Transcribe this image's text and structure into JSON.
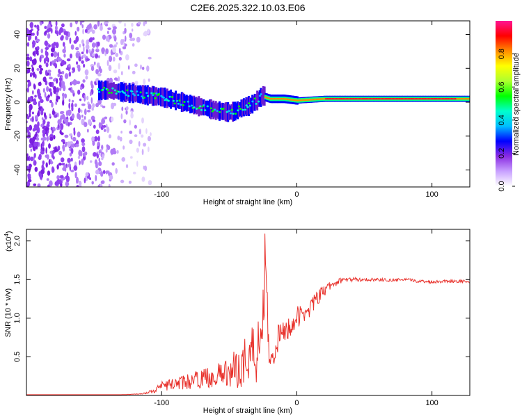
{
  "title": "C2E6.2025.322.10.03.E06",
  "chart_data": [
    {
      "type": "heatmap",
      "xlabel": "Height of straight line (km)",
      "ylabel": "Frequency (Hz)",
      "xlim": [
        -200,
        128
      ],
      "ylim": [
        -50,
        48
      ],
      "xticks": [
        -100,
        0,
        100
      ],
      "yticks": [
        -40,
        -20,
        0,
        20,
        40
      ],
      "colorbar": {
        "label": "Normalized spectral amplitude",
        "range": [
          0,
          1
        ],
        "ticks": [
          "0.0",
          "0.2",
          "0.4",
          "0.6",
          "0.8"
        ],
        "tick_values": [
          0,
          0.2,
          0.4,
          0.6,
          0.8
        ],
        "colors": [
          "#ffffff",
          "#c8a0ff",
          "#8a2be2",
          "#0000ff",
          "#00bfff",
          "#00ffcc",
          "#00ff00",
          "#adff2f",
          "#ffff00",
          "#ff8c00",
          "#ff0000",
          "#ff1493"
        ]
      },
      "ridge": {
        "x": [
          -147,
          -140,
          -130,
          -120,
          -110,
          -100,
          -90,
          -80,
          -70,
          -60,
          -50,
          -45,
          -40,
          -35,
          -30,
          -27,
          -25,
          -24,
          -20,
          -15,
          -10,
          0,
          20,
          40,
          60,
          80,
          90,
          100,
          110,
          128
        ],
        "freq": [
          7,
          7,
          6,
          5,
          4,
          3,
          1,
          -1,
          -3,
          -5,
          -6,
          -5,
          -3,
          -2,
          1,
          3,
          4,
          3,
          2,
          2,
          2,
          1,
          2,
          2,
          2,
          2,
          2,
          2,
          2,
          2
        ]
      }
    },
    {
      "type": "line",
      "xlabel": "Height of straight line (km)",
      "ylabel": "SNR (10 * v/v)",
      "yscale_label": "(x10",
      "yscale_exp": "4",
      "yscale_close": ")",
      "xlim": [
        -200,
        128
      ],
      "ylim": [
        0,
        2.15
      ],
      "xticks": [
        -100,
        0,
        100
      ],
      "yticks": [
        0.5,
        1.0,
        1.5,
        2.0
      ],
      "ytick_labels": [
        "0.5",
        "1.0",
        "1.5",
        "2.0"
      ],
      "series": [
        {
          "name": "SNR",
          "color": "#e8302a",
          "x": [
            -200,
            -150,
            -130,
            -115,
            -105,
            -100,
            -90,
            -80,
            -70,
            -60,
            -50,
            -45,
            -40,
            -35,
            -30,
            -27,
            -25,
            -24,
            -23,
            -21,
            -18,
            -15,
            -10,
            -5,
            0,
            5,
            10,
            15,
            20,
            25,
            30,
            35,
            40,
            50,
            60,
            70,
            80,
            90,
            100,
            110,
            120,
            128
          ],
          "y": [
            0.01,
            0.01,
            0.01,
            0.02,
            0.06,
            0.12,
            0.15,
            0.18,
            0.22,
            0.25,
            0.3,
            0.35,
            0.4,
            0.55,
            0.6,
            0.9,
            1.0,
            1.5,
            2.1,
            0.6,
            0.5,
            0.7,
            0.8,
            0.9,
            1.0,
            1.05,
            1.15,
            1.25,
            1.35,
            1.42,
            1.47,
            1.5,
            1.5,
            1.5,
            1.5,
            1.49,
            1.5,
            1.48,
            1.47,
            1.48,
            1.48,
            1.47
          ],
          "noise": [
            0,
            0,
            0,
            0.005,
            0.03,
            0.06,
            0.08,
            0.1,
            0.12,
            0.15,
            0.2,
            0.25,
            0.3,
            0.4,
            0.5,
            0.55,
            0.6,
            0.6,
            0.3,
            0.25,
            0.2,
            0.2,
            0.18,
            0.16,
            0.15,
            0.13,
            0.12,
            0.1,
            0.08,
            0.06,
            0.04,
            0.03,
            0.03,
            0.02,
            0.02,
            0.02,
            0.02,
            0.02,
            0.02,
            0.02,
            0.02,
            0.02
          ]
        }
      ]
    }
  ]
}
